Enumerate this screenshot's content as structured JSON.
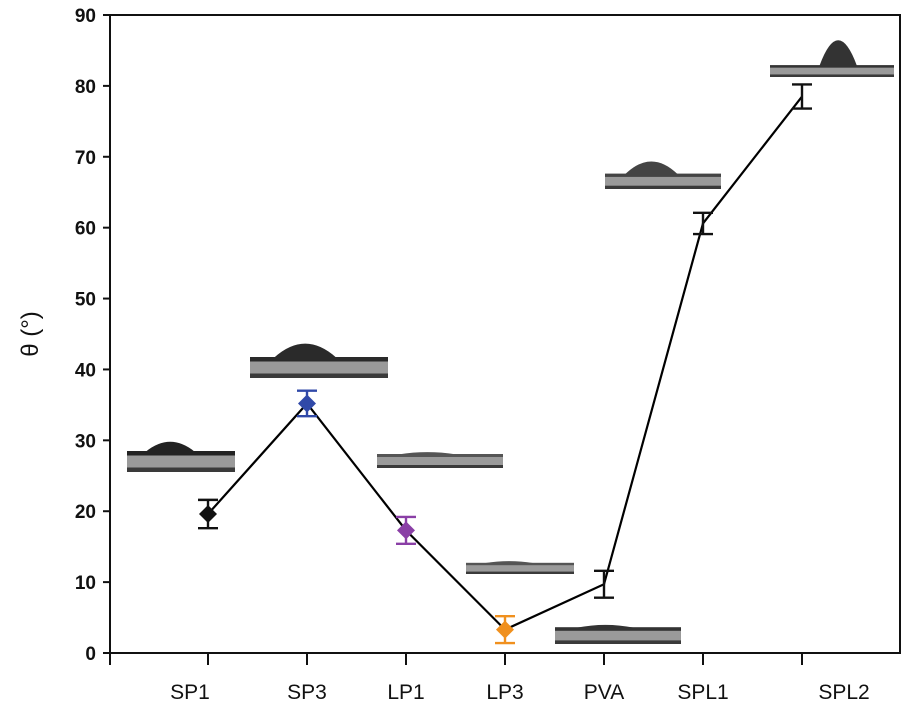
{
  "chart_data": {
    "type": "line",
    "title": "",
    "xlabel": "",
    "ylabel": "θ (°)",
    "ylim": [
      0,
      90
    ],
    "yticks": [
      0,
      10,
      20,
      30,
      40,
      50,
      60,
      70,
      80,
      90
    ],
    "grid": false,
    "legend": "none",
    "categories": [
      "SP1",
      "SP3",
      "LP1",
      "LP3",
      "PVA",
      "SPL1",
      "SPL2"
    ],
    "values": [
      19.6,
      35.2,
      17.3,
      3.3,
      9.7,
      60.6,
      78.5
    ],
    "errors": [
      2.0,
      1.8,
      1.9,
      1.9,
      1.9,
      1.5,
      1.7
    ],
    "marker_colors": [
      "#111111",
      "#3049a8",
      "#8a3fa6",
      "#f0901e",
      "#111111",
      "#111111",
      "#111111"
    ],
    "markers": [
      "diamond",
      "diamond",
      "diamond",
      "diamond",
      "none",
      "none",
      "none"
    ],
    "line_color": "#000000",
    "annotations": "droplet contact-angle photographs above each point"
  }
}
